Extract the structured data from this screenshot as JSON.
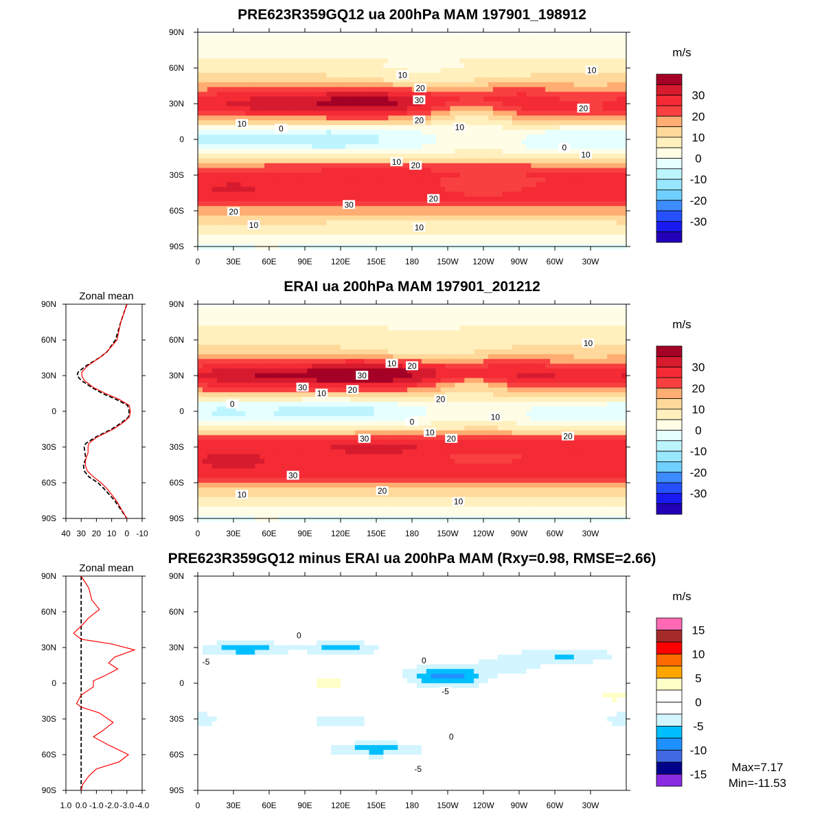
{
  "chart_data": [
    {
      "type": "heatmap",
      "title": "PRE623R359GQ12 ua 200hPa MAM 197901_198912",
      "colorbar": {
        "title": "m/s",
        "labels": [
          "30",
          "20",
          "10",
          "0",
          "-10",
          "-20",
          "-30"
        ],
        "levels": [
          35,
          30,
          25,
          20,
          15,
          10,
          5,
          0,
          -5,
          -10,
          -15,
          -20,
          -25,
          -30,
          -35
        ],
        "colors": [
          "#a50026",
          "#d71b2e",
          "#f42a35",
          "#f84040",
          "#ffad72",
          "#ffd99b",
          "#fff0be",
          "#fffde6",
          "#e6ffff",
          "#bdf5ff",
          "#99e6ff",
          "#6fcfff",
          "#3c8cff",
          "#2650ff",
          "#1a1af0",
          "#2200b8"
        ]
      },
      "xticks": [
        "0",
        "30E",
        "60E",
        "90E",
        "120E",
        "150E",
        "180",
        "150W",
        "120W",
        "90W",
        "60W",
        "30W"
      ],
      "yticks": [
        "90N",
        "60N",
        "30N",
        "0",
        "30S",
        "60S",
        "90S"
      ],
      "contour_labels": [
        [
          "10",
          172,
          54
        ],
        [
          "20",
          187,
          43
        ],
        [
          "30",
          186,
          33
        ],
        [
          "20",
          186,
          16
        ],
        [
          "10",
          220,
          10
        ],
        [
          "20",
          324,
          26
        ],
        [
          "10",
          331,
          58
        ],
        [
          "10",
          37,
          13
        ],
        [
          "0",
          70,
          9
        ],
        [
          "0",
          308,
          -7
        ],
        [
          "10",
          326,
          -13
        ],
        [
          "10",
          167,
          -19
        ],
        [
          "20",
          183,
          -22
        ],
        [
          "20",
          198,
          -50
        ],
        [
          "30",
          127,
          -55
        ],
        [
          "20",
          30,
          -61
        ],
        [
          "10",
          47,
          -72
        ],
        [
          "10",
          186,
          -74
        ]
      ]
    },
    {
      "type": "heatmap",
      "title": "ERAI ua 200hPa MAM 197901_201212",
      "colorbar": {
        "title": "m/s",
        "labels": [
          "30",
          "20",
          "10",
          "0",
          "-10",
          "-20",
          "-30"
        ]
      },
      "xticks": [
        "0",
        "30E",
        "60E",
        "90E",
        "120E",
        "150E",
        "180",
        "150W",
        "120W",
        "90W",
        "60W",
        "30W"
      ],
      "yticks": [
        "90N",
        "60N",
        "30N",
        "0",
        "30S",
        "60S",
        "90S"
      ],
      "contour_labels": [
        [
          "10",
          328,
          57
        ],
        [
          "10",
          163,
          40
        ],
        [
          "20",
          180,
          38
        ],
        [
          "30",
          138,
          30
        ],
        [
          "20",
          130,
          18
        ],
        [
          "30",
          88,
          20
        ],
        [
          "10",
          104,
          15
        ],
        [
          "0",
          29,
          6
        ],
        [
          "20",
          204,
          10
        ],
        [
          "10",
          250,
          -5
        ],
        [
          "0",
          180,
          -9
        ],
        [
          "10",
          195,
          -18
        ],
        [
          "20",
          213,
          -23
        ],
        [
          "20",
          311,
          -21
        ],
        [
          "30",
          140,
          -23
        ],
        [
          "30",
          80,
          -54
        ],
        [
          "20",
          155,
          -67
        ],
        [
          "10",
          37,
          -70
        ],
        [
          "10",
          219,
          -76
        ]
      ]
    },
    {
      "type": "line",
      "title": "Zonal mean",
      "xlim": [
        40,
        -10
      ],
      "xticks": [
        "40",
        "30",
        "20",
        "10",
        "0",
        "-10"
      ],
      "yticks": [
        "90N",
        "60N",
        "30N",
        "0",
        "30S",
        "60S",
        "90S"
      ],
      "lat": [
        90,
        75,
        60,
        50,
        45,
        38,
        33,
        30,
        26,
        20,
        15,
        10,
        5,
        0,
        -5,
        -10,
        -15,
        -22,
        -27,
        -30,
        -35,
        -40,
        -45,
        -50,
        -55,
        -60,
        -65,
        -75,
        -90
      ],
      "series": [
        {
          "style": "solid",
          "color": "#ff0000",
          "values": [
            0,
            4,
            6.5,
            13,
            18,
            26,
            29.5,
            29.6,
            28,
            22,
            14,
            5,
            -1.5,
            -2.4,
            -1.5,
            3,
            9,
            20,
            25,
            25.5,
            25.5,
            27,
            27.4,
            26,
            22,
            17,
            13,
            7,
            0
          ]
        },
        {
          "style": "dashed",
          "color": "#000000",
          "values": [
            0,
            4,
            7.5,
            13,
            18,
            27,
            32,
            32.7,
            30,
            23,
            16,
            7,
            -0.5,
            -1.5,
            -1,
            4,
            10,
            21,
            27,
            28,
            27.5,
            27,
            28.5,
            28,
            25,
            19,
            15,
            8,
            0
          ]
        }
      ]
    },
    {
      "type": "heatmap",
      "title": "PRE623R359GQ12 minus ERAI ua 200hPa MAM (Rxy=0.98, RMSE=2.66)",
      "colorbar": {
        "title": "m/s",
        "labels": [
          "15",
          "10",
          "5",
          "0",
          "-5",
          "-10",
          "-15"
        ],
        "levels": [
          15,
          12.5,
          10,
          7.5,
          5,
          2.5,
          0,
          -2.5,
          -5,
          -7.5,
          -10,
          -12.5,
          -15
        ],
        "colors": [
          "#ff69b4",
          "#a52a2a",
          "#ff0000",
          "#ff6a00",
          "#ffa500",
          "#ffffc8",
          "#ffffff",
          "#ffffff",
          "#d2f5ff",
          "#00bfff",
          "#1e90ff",
          "#4169e1",
          "#00008b",
          "#8a2be2"
        ]
      },
      "xticks": [
        "0",
        "30E",
        "60E",
        "90E",
        "120E",
        "150E",
        "180",
        "150W",
        "120W",
        "90W",
        "60W",
        "30W"
      ],
      "yticks": [
        "90N",
        "60N",
        "30N",
        "0",
        "30S",
        "60S",
        "90S"
      ],
      "contour_labels": [
        [
          "0",
          85,
          40
        ],
        [
          "-5",
          7,
          18
        ],
        [
          "0",
          190,
          19
        ],
        [
          "-5",
          208,
          -7
        ],
        [
          "0",
          213,
          -45
        ],
        [
          "-5",
          185,
          -72
        ]
      ],
      "stats": {
        "max": "Max=7.17",
        "min": "Min=-11.53"
      }
    },
    {
      "type": "line",
      "title": "Zonal mean",
      "xlim": [
        1.0,
        -4.0
      ],
      "xticks": [
        "1.0",
        "0.0",
        "-1.0",
        "-2.0",
        "-3.0",
        "-4.0"
      ],
      "yticks": [
        "90N",
        "60N",
        "30N",
        "0",
        "30S",
        "60S",
        "90S"
      ],
      "lat": [
        90,
        80,
        70,
        62,
        55,
        48,
        42,
        37,
        33,
        28,
        22,
        17,
        12,
        6,
        2,
        0,
        -3,
        -10,
        -17,
        -20,
        -25,
        -33,
        -40,
        -45,
        -52,
        -60,
        -66,
        -72,
        -78,
        -85,
        -90
      ],
      "series": [
        {
          "style": "solid",
          "color": "#ff0000",
          "values": [
            0,
            -0.5,
            -0.7,
            -1.2,
            -0.5,
            0,
            0.5,
            0,
            -2,
            -3.5,
            -2.2,
            -1.8,
            -2.4,
            -1.5,
            -0.8,
            -0.8,
            -0.8,
            0,
            0.3,
            0,
            -1.2,
            -2.1,
            -1.4,
            -0.8,
            -1.8,
            -3.1,
            -2.5,
            -1,
            -0.5,
            -0.1,
            0
          ]
        },
        {
          "style": "dashed",
          "color": "#000000",
          "values": [
            0,
            0,
            0,
            0,
            0,
            0,
            0,
            0,
            0,
            0,
            0,
            0,
            0,
            0,
            0,
            0,
            0,
            0,
            0,
            0,
            0,
            0,
            0,
            0,
            0,
            0,
            0,
            0,
            0,
            0,
            0
          ]
        }
      ]
    }
  ]
}
